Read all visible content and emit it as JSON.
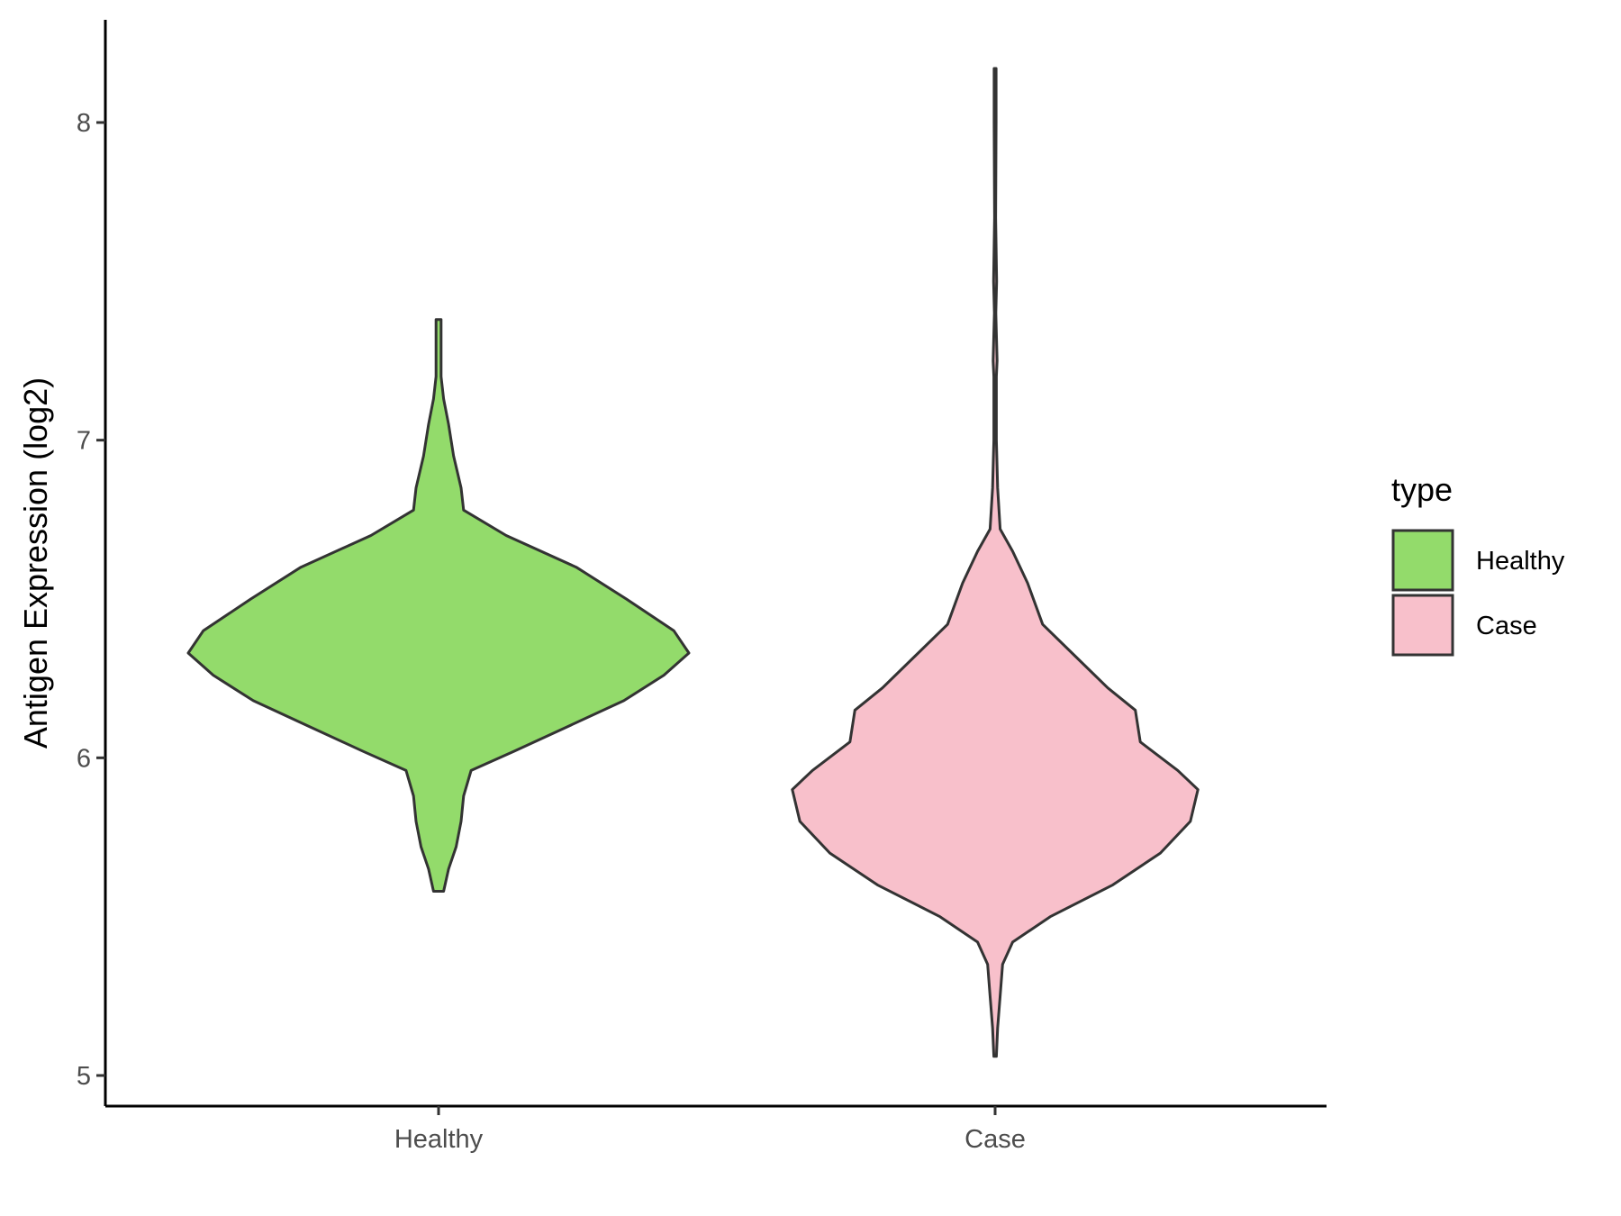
{
  "chart_data": {
    "type": "violin",
    "title": "",
    "xlabel": "",
    "ylabel": "Antigen Expression (log2)",
    "categories": [
      "Healthy",
      "Case"
    ],
    "yticks": [
      5,
      6,
      7,
      8
    ],
    "ylim": [
      4.9,
      8.3
    ],
    "grid": false,
    "legend": {
      "title": "type",
      "position": "right",
      "entries": [
        {
          "label": "Healthy",
          "color": "#93db6b"
        },
        {
          "label": "Case",
          "color": "#f8c0cb"
        }
      ]
    },
    "series": [
      {
        "name": "Healthy",
        "category": "Healthy",
        "color": "#93db6b",
        "min": 5.58,
        "max": 7.38,
        "density": [
          [
            5.58,
            0.02
          ],
          [
            5.65,
            0.04
          ],
          [
            5.72,
            0.07
          ],
          [
            5.8,
            0.09
          ],
          [
            5.88,
            0.1
          ],
          [
            5.96,
            0.13
          ],
          [
            6.02,
            0.3
          ],
          [
            6.1,
            0.52
          ],
          [
            6.18,
            0.74
          ],
          [
            6.26,
            0.9
          ],
          [
            6.33,
            1.0
          ],
          [
            6.4,
            0.94
          ],
          [
            6.5,
            0.75
          ],
          [
            6.6,
            0.55
          ],
          [
            6.7,
            0.27
          ],
          [
            6.78,
            0.1
          ],
          [
            6.85,
            0.09
          ],
          [
            6.95,
            0.06
          ],
          [
            7.05,
            0.04
          ],
          [
            7.13,
            0.02
          ],
          [
            7.2,
            0.01
          ],
          [
            7.3,
            0.01
          ],
          [
            7.38,
            0.01
          ]
        ]
      },
      {
        "name": "Case",
        "category": "Case",
        "color": "#f8c0cb",
        "min": 5.06,
        "max": 8.17,
        "density": [
          [
            5.06,
            0.005
          ],
          [
            5.15,
            0.01
          ],
          [
            5.25,
            0.02
          ],
          [
            5.35,
            0.03
          ],
          [
            5.42,
            0.07
          ],
          [
            5.5,
            0.22
          ],
          [
            5.6,
            0.47
          ],
          [
            5.7,
            0.66
          ],
          [
            5.8,
            0.78
          ],
          [
            5.9,
            0.81
          ],
          [
            5.96,
            0.73
          ],
          [
            6.05,
            0.58
          ],
          [
            6.15,
            0.56
          ],
          [
            6.22,
            0.45
          ],
          [
            6.32,
            0.32
          ],
          [
            6.42,
            0.19
          ],
          [
            6.55,
            0.13
          ],
          [
            6.65,
            0.07
          ],
          [
            6.72,
            0.02
          ],
          [
            6.85,
            0.01
          ],
          [
            7.0,
            0.005
          ],
          [
            7.2,
            0.005
          ],
          [
            7.25,
            0.008
          ],
          [
            7.4,
            0.003
          ],
          [
            7.5,
            0.006
          ],
          [
            7.7,
            0.002
          ],
          [
            8.0,
            0.004
          ],
          [
            8.17,
            0.004
          ]
        ]
      }
    ]
  }
}
